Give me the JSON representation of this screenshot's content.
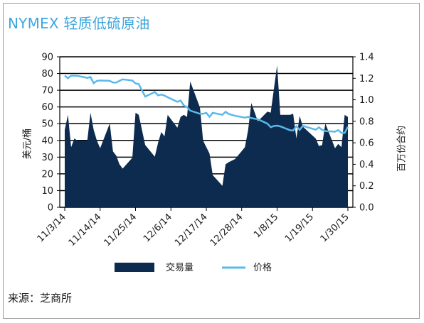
{
  "title": "NYMEX 轻质低硫原油",
  "source": "来源：芝商所",
  "colors": {
    "title": "#3ea6dd",
    "volume": "#0c2b4e",
    "price": "#5ab8ea",
    "grid": "#000000"
  },
  "chart_data": {
    "type": "area",
    "ylabel_left": "美元/桶",
    "ylabel_right": "百万份合约",
    "ylim_left": [
      0,
      90
    ],
    "ylim_right": [
      0,
      1.4
    ],
    "yticks_left": [
      "0",
      "10",
      "20",
      "30",
      "40",
      "50",
      "60",
      "70",
      "80",
      "90"
    ],
    "yticks_right": [
      "0.0",
      "0.2",
      "0.4",
      "0.6",
      "0.8",
      "1.0",
      "1.2",
      "1.4"
    ],
    "xticks": [
      "11/3/14",
      "11/14/14",
      "11/25/14",
      "12/6/14",
      "12/17/14",
      "12/28/14",
      "1/8/15",
      "1/19/15",
      "1/30/15"
    ],
    "grid": "horizontal",
    "legend_position": "bottom",
    "series": [
      {
        "name": "交易量",
        "axis": "right",
        "style": "area",
        "x": [
          "11/3/14",
          "11/4/14",
          "11/5/14",
          "11/6/14",
          "11/7/14",
          "11/10/14",
          "11/11/14",
          "11/12/14",
          "11/13/14",
          "11/14/14",
          "11/17/14",
          "11/18/14",
          "11/19/14",
          "11/20/14",
          "11/21/14",
          "11/24/14",
          "11/25/14",
          "11/26/14",
          "11/28/14",
          "12/1/14",
          "12/2/14",
          "12/3/14",
          "12/4/14",
          "12/5/14",
          "12/8/14",
          "12/9/14",
          "12/10/14",
          "12/11/14",
          "12/12/14",
          "12/15/14",
          "12/16/14",
          "12/17/14",
          "12/18/14",
          "12/19/14",
          "12/22/14",
          "12/23/14",
          "12/24/14",
          "12/26/14",
          "12/29/14",
          "12/30/14",
          "12/31/14",
          "1/2/15",
          "1/5/15",
          "1/6/15",
          "1/7/15",
          "1/8/15",
          "1/9/15",
          "1/12/15",
          "1/13/15",
          "1/14/15",
          "1/15/15",
          "1/16/15",
          "1/20/15",
          "1/21/15",
          "1/22/15",
          "1/23/15",
          "1/26/15",
          "1/27/15",
          "1/28/15",
          "1/29/15",
          "1/30/15"
        ],
        "values": [
          0.72,
          0.86,
          0.56,
          0.64,
          0.62,
          0.62,
          0.88,
          0.72,
          0.62,
          0.55,
          0.78,
          0.52,
          0.48,
          0.4,
          0.36,
          0.46,
          0.88,
          0.86,
          0.58,
          0.47,
          0.6,
          0.7,
          0.66,
          0.86,
          0.74,
          0.84,
          0.86,
          0.84,
          1.17,
          0.93,
          0.62,
          0.56,
          0.5,
          0.3,
          0.2,
          0.4,
          0.42,
          0.45,
          0.56,
          0.72,
          0.97,
          0.8,
          0.89,
          0.88,
          1.1,
          1.32,
          0.86,
          0.86,
          0.87,
          0.64,
          0.85,
          0.75,
          0.64,
          0.57,
          0.58,
          0.78,
          0.55,
          0.59,
          0.56,
          0.86,
          0.84
        ]
      },
      {
        "name": "价格",
        "axis": "left",
        "style": "line",
        "x": [
          "11/3/14",
          "11/4/14",
          "11/5/14",
          "11/6/14",
          "11/7/14",
          "11/10/14",
          "11/11/14",
          "11/12/14",
          "11/13/14",
          "11/14/14",
          "11/17/14",
          "11/18/14",
          "11/19/14",
          "11/20/14",
          "11/21/14",
          "11/24/14",
          "11/25/14",
          "11/26/14",
          "11/28/14",
          "12/1/14",
          "12/2/14",
          "12/3/14",
          "12/4/14",
          "12/5/14",
          "12/8/14",
          "12/9/14",
          "12/10/14",
          "12/11/14",
          "12/12/14",
          "12/15/14",
          "12/16/14",
          "12/17/14",
          "12/18/14",
          "12/19/14",
          "12/22/14",
          "12/23/14",
          "12/24/14",
          "12/26/14",
          "12/29/14",
          "12/30/14",
          "12/31/14",
          "1/2/15",
          "1/5/15",
          "1/6/15",
          "1/7/15",
          "1/8/15",
          "1/9/15",
          "1/12/15",
          "1/13/15",
          "1/14/15",
          "1/15/15",
          "1/16/15",
          "1/20/15",
          "1/21/15",
          "1/22/15",
          "1/23/15",
          "1/26/15",
          "1/27/15",
          "1/28/15",
          "1/29/15",
          "1/30/15"
        ],
        "values": [
          78.8,
          77.2,
          78.7,
          78.7,
          78.6,
          77.4,
          77.9,
          74.2,
          75.6,
          75.8,
          75.6,
          74.6,
          74.6,
          75.6,
          76.5,
          75.8,
          74.1,
          73.7,
          66.2,
          69.0,
          66.9,
          67.4,
          66.8,
          65.8,
          63.1,
          63.8,
          60.9,
          59.9,
          57.8,
          55.9,
          55.9,
          56.5,
          54.1,
          56.5,
          55.3,
          57.1,
          55.8,
          54.7,
          53.6,
          54.1,
          53.3,
          52.7,
          50.0,
          47.9,
          48.6,
          48.8,
          48.4,
          46.1,
          45.9,
          48.5,
          46.3,
          48.7,
          46.4,
          47.8,
          46.3,
          45.6,
          45.2,
          46.2,
          44.5,
          44.5,
          48.2
        ]
      }
    ]
  }
}
